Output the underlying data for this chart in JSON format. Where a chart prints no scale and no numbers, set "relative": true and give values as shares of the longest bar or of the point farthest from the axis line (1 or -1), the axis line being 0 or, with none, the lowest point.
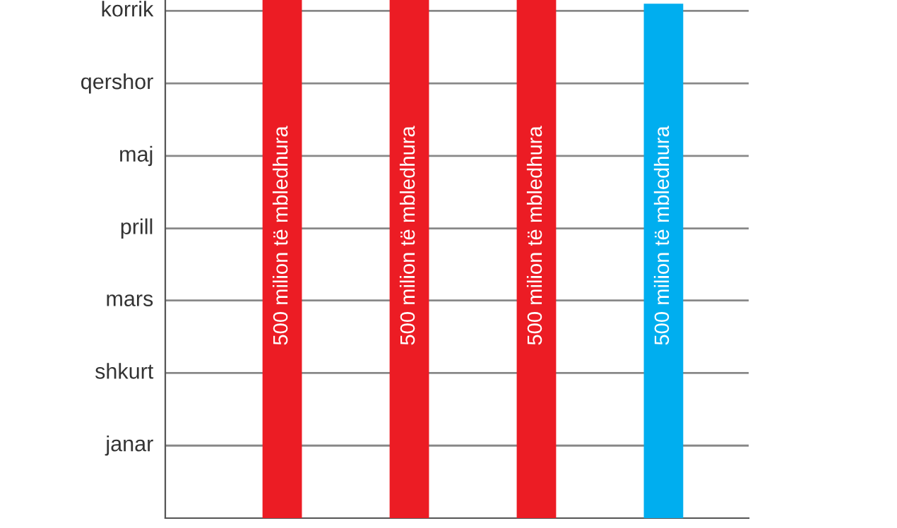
{
  "chart_data": {
    "type": "bar",
    "categories": [
      null,
      null,
      null,
      null
    ],
    "relative": true,
    "series": [
      {
        "colors": [
          "#ec1c24",
          "#ec1c24",
          "#ec1c24",
          "#00aeef"
        ],
        "values": [
          1,
          1,
          1,
          0.993
        ]
      }
    ],
    "annotations": [
      "500 milion të mbledhura",
      "500 milion të mbledhura",
      "500 milion të mbledhura",
      "500 milion të mbledhura"
    ],
    "ref_lines": [
      {
        "axis": "y",
        "value": 0.14,
        "label": "janar",
        "color": "#888888"
      },
      {
        "axis": "y",
        "value": 0.28,
        "label": "shkurt",
        "color": "#888888"
      },
      {
        "axis": "y",
        "value": 0.42,
        "label": "mars",
        "color": "#888888"
      },
      {
        "axis": "y",
        "value": 0.559,
        "label": "prill",
        "color": "#888888"
      },
      {
        "axis": "y",
        "value": 0.699,
        "label": "maj",
        "color": "#888888"
      },
      {
        "axis": "y",
        "value": 0.839,
        "label": "qershor",
        "color": "#888888"
      },
      {
        "axis": "y",
        "value": 0.979,
        "label": "korrik",
        "color": "#888888"
      }
    ]
  }
}
